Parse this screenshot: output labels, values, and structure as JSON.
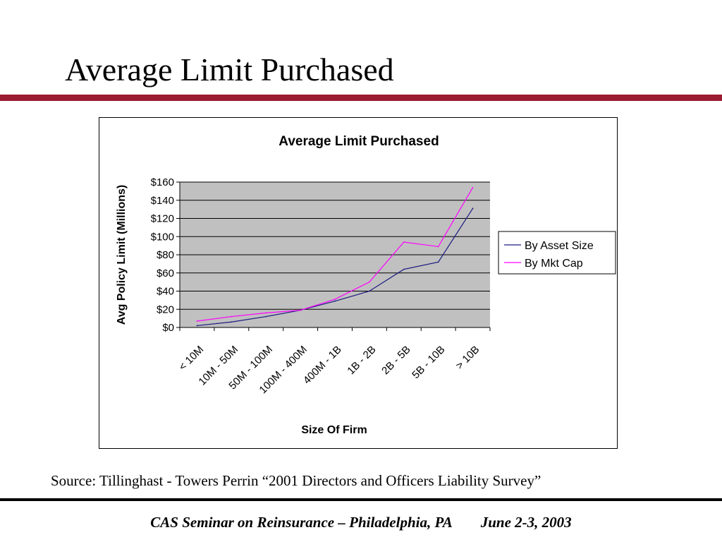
{
  "slide": {
    "title": "Average Limit Purchased",
    "source": "Source:  Tillinghast - Towers Perrin “2001 Directors and Officers Liability Survey”",
    "footer_event": "CAS Seminar on Reinsurance – Philadelphia, PA",
    "footer_date": "June 2-3, 2003",
    "accent_color": "#9b1b30"
  },
  "chart_data": {
    "type": "line",
    "title": "Average Limit Purchased",
    "xlabel": "Size Of Firm",
    "ylabel": "Avg Policy Limit (Millions)",
    "categories": [
      "< 10M",
      "10M - 50M",
      "50M - 100M",
      "100M - 400M",
      "400M - 1B",
      "1B - 2B",
      "2B - 5B",
      "5B - 10B",
      "> 10B"
    ],
    "ylim": [
      0,
      160
    ],
    "yticks": [
      0,
      20,
      40,
      60,
      80,
      100,
      120,
      140,
      160
    ],
    "ytick_labels": [
      "$0",
      "$20",
      "$40",
      "$60",
      "$80",
      "$100",
      "$120",
      "$140",
      "$160"
    ],
    "grid": true,
    "plot_background": "#c0c0c0",
    "legend_position": "right",
    "series": [
      {
        "name": "By Asset Size",
        "color": "#1a1a80",
        "values": [
          2,
          6,
          12,
          19,
          29,
          40,
          64,
          72,
          131
        ]
      },
      {
        "name": "By Mkt Cap",
        "color": "#ff00ff",
        "values": [
          7,
          12,
          16,
          19,
          31,
          50,
          94,
          89,
          154
        ]
      }
    ]
  }
}
